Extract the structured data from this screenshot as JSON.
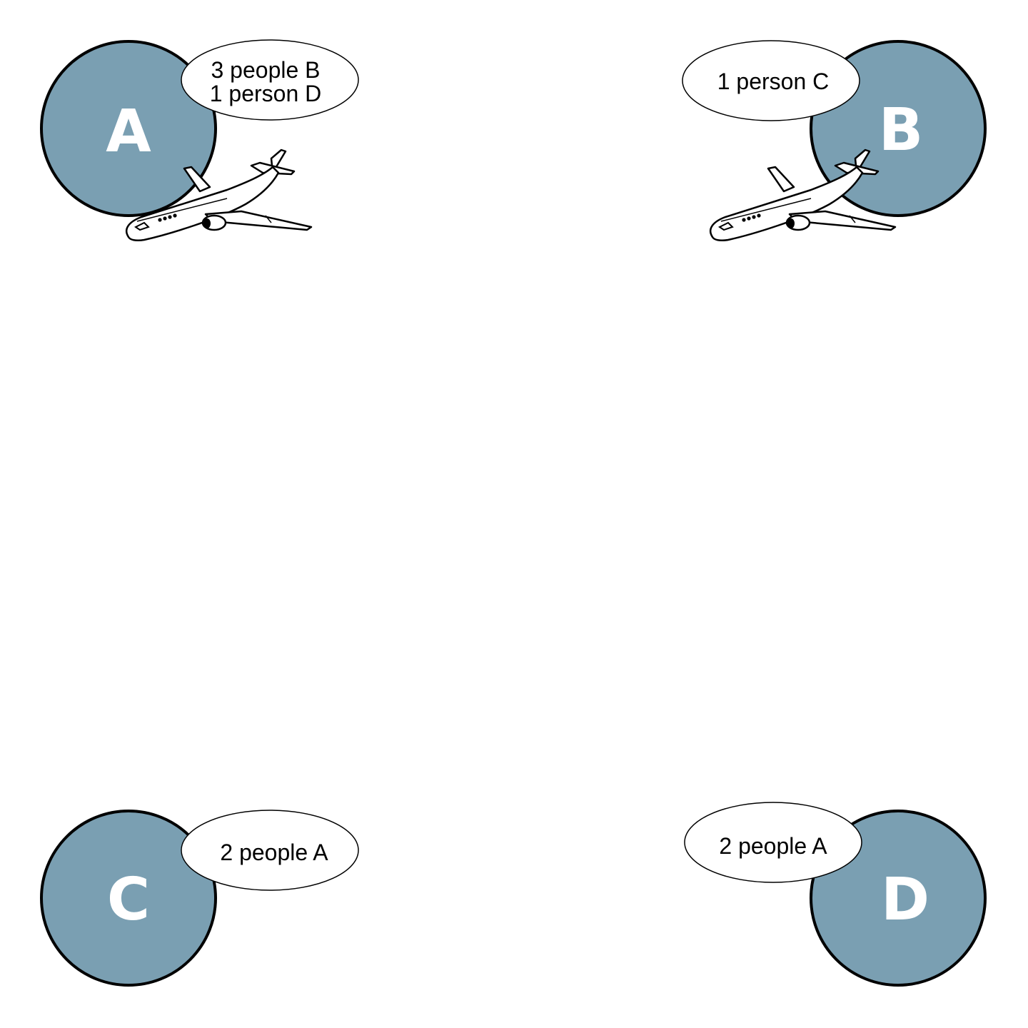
{
  "colors": {
    "node_fill": "#7a9fb2",
    "node_stroke": "#000000",
    "bubble_fill": "#ffffff",
    "bubble_stroke": "#000000",
    "letter": "#ffffff"
  },
  "nodes": [
    {
      "id": "A",
      "label": "A",
      "bubble_lines": [
        "3 people B",
        "1 person D"
      ],
      "has_plane": true
    },
    {
      "id": "B",
      "label": "B",
      "bubble_lines": [
        "1 person C"
      ],
      "has_plane": true
    },
    {
      "id": "C",
      "label": "C",
      "bubble_lines": [
        "2 people A"
      ],
      "has_plane": false
    },
    {
      "id": "D",
      "label": "D",
      "bubble_lines": [
        "2 people A"
      ],
      "has_plane": false
    }
  ],
  "icons": {
    "plane": "airplane-icon"
  }
}
